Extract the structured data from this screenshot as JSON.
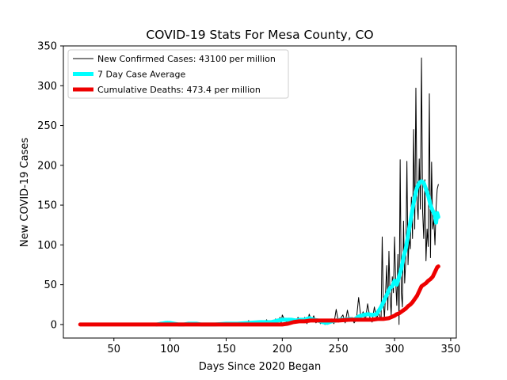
{
  "chart_data": {
    "type": "line",
    "title": "COVID-19 Stats For Mesa County, CO",
    "xlabel": "Days Since 2020 Began",
    "ylabel": "New COVID-19 Cases",
    "xlim": [
      5,
      355
    ],
    "ylim": [
      -17,
      350
    ],
    "xticks": [
      50,
      100,
      150,
      200,
      250,
      300,
      350
    ],
    "yticks": [
      0,
      50,
      100,
      150,
      200,
      250,
      300,
      350
    ],
    "grid": false,
    "legend_position": "upper-left",
    "series": [
      {
        "name": "New Confirmed Cases: 43100 per million",
        "color": "#000000",
        "style": "thin-line",
        "points": [
          [
            20,
            0
          ],
          [
            40,
            0
          ],
          [
            60,
            0
          ],
          [
            80,
            0
          ],
          [
            88,
            1
          ],
          [
            92,
            3
          ],
          [
            95,
            0
          ],
          [
            98,
            4
          ],
          [
            101,
            1
          ],
          [
            104,
            2
          ],
          [
            108,
            0
          ],
          [
            112,
            0
          ],
          [
            116,
            1
          ],
          [
            120,
            2
          ],
          [
            124,
            1
          ],
          [
            128,
            0
          ],
          [
            132,
            1
          ],
          [
            136,
            0
          ],
          [
            140,
            0
          ],
          [
            144,
            1
          ],
          [
            148,
            0
          ],
          [
            152,
            1
          ],
          [
            156,
            2
          ],
          [
            160,
            0
          ],
          [
            164,
            3
          ],
          [
            168,
            1
          ],
          [
            170,
            5
          ],
          [
            172,
            0
          ],
          [
            174,
            2
          ],
          [
            176,
            4
          ],
          [
            178,
            0
          ],
          [
            180,
            3
          ],
          [
            182,
            5
          ],
          [
            184,
            0
          ],
          [
            186,
            6
          ],
          [
            188,
            2
          ],
          [
            190,
            4
          ],
          [
            192,
            0
          ],
          [
            194,
            7
          ],
          [
            196,
            3
          ],
          [
            198,
            9
          ],
          [
            199,
            2
          ],
          [
            200,
            12
          ],
          [
            202,
            6
          ],
          [
            204,
            3
          ],
          [
            206,
            8
          ],
          [
            208,
            4
          ],
          [
            210,
            7
          ],
          [
            212,
            2
          ],
          [
            214,
            9
          ],
          [
            216,
            5
          ],
          [
            218,
            3
          ],
          [
            220,
            9
          ],
          [
            222,
            1
          ],
          [
            224,
            13
          ],
          [
            226,
            4
          ],
          [
            228,
            11
          ],
          [
            230,
            2
          ],
          [
            232,
            6
          ],
          [
            234,
            1
          ],
          [
            236,
            4
          ],
          [
            238,
            0
          ],
          [
            240,
            5
          ],
          [
            242,
            2
          ],
          [
            244,
            7
          ],
          [
            246,
            1
          ],
          [
            248,
            19
          ],
          [
            250,
            3
          ],
          [
            252,
            8
          ],
          [
            254,
            12
          ],
          [
            256,
            2
          ],
          [
            258,
            18
          ],
          [
            260,
            4
          ],
          [
            262,
            9
          ],
          [
            264,
            2
          ],
          [
            266,
            6
          ],
          [
            268,
            34
          ],
          [
            270,
            8
          ],
          [
            272,
            16
          ],
          [
            274,
            5
          ],
          [
            276,
            26
          ],
          [
            278,
            9
          ],
          [
            280,
            3
          ],
          [
            282,
            22
          ],
          [
            284,
            8
          ],
          [
            286,
            14
          ],
          [
            288,
            6
          ],
          [
            289,
            110
          ],
          [
            290,
            28
          ],
          [
            291,
            8
          ],
          [
            292,
            40
          ],
          [
            293,
            74
          ],
          [
            294,
            18
          ],
          [
            295,
            92
          ],
          [
            296,
            35
          ],
          [
            297,
            12
          ],
          [
            298,
            60
          ],
          [
            299,
            40
          ],
          [
            300,
            110
          ],
          [
            301,
            55
          ],
          [
            302,
            24
          ],
          [
            303,
            88
          ],
          [
            304,
            0
          ],
          [
            305,
            207
          ],
          [
            306,
            40
          ],
          [
            307,
            22
          ],
          [
            308,
            130
          ],
          [
            309,
            52
          ],
          [
            310,
            80
          ],
          [
            311,
            205
          ],
          [
            312,
            75
          ],
          [
            313,
            110
          ],
          [
            314,
            95
          ],
          [
            315,
            160
          ],
          [
            316,
            108
          ],
          [
            317,
            245
          ],
          [
            318,
            120
          ],
          [
            319,
            297
          ],
          [
            320,
            155
          ],
          [
            321,
            132
          ],
          [
            322,
            208
          ],
          [
            323,
            145
          ],
          [
            324,
            335
          ],
          [
            325,
            142
          ],
          [
            326,
            108
          ],
          [
            327,
            182
          ],
          [
            328,
            80
          ],
          [
            329,
            120
          ],
          [
            330,
            98
          ],
          [
            331,
            290
          ],
          [
            332,
            84
          ],
          [
            333,
            204
          ],
          [
            334,
            120
          ],
          [
            335,
            132
          ],
          [
            336,
            100
          ],
          [
            337,
            148
          ],
          [
            338,
            170
          ],
          [
            339,
            176
          ]
        ]
      },
      {
        "name": "7 Day Case Average",
        "color": "#00ffff",
        "style": "thick-line",
        "points": [
          [
            88,
            0
          ],
          [
            92,
            1
          ],
          [
            96,
            2
          ],
          [
            100,
            2
          ],
          [
            104,
            1
          ],
          [
            108,
            0
          ],
          [
            112,
            0
          ],
          [
            116,
            1
          ],
          [
            120,
            1
          ],
          [
            124,
            1
          ],
          [
            128,
            0
          ],
          [
            132,
            0
          ],
          [
            136,
            0
          ],
          [
            140,
            0
          ],
          [
            150,
            1
          ],
          [
            160,
            1
          ],
          [
            170,
            2
          ],
          [
            180,
            3
          ],
          [
            190,
            3
          ],
          [
            196,
            5
          ],
          [
            200,
            6
          ],
          [
            204,
            6
          ],
          [
            208,
            6
          ],
          [
            212,
            5
          ],
          [
            216,
            6
          ],
          [
            220,
            6
          ],
          [
            224,
            8
          ],
          [
            228,
            6
          ],
          [
            232,
            5
          ],
          [
            236,
            3
          ],
          [
            240,
            2
          ],
          [
            244,
            4
          ],
          [
            248,
            5
          ],
          [
            252,
            6
          ],
          [
            256,
            6
          ],
          [
            260,
            7
          ],
          [
            264,
            6
          ],
          [
            268,
            10
          ],
          [
            272,
            12
          ],
          [
            276,
            13
          ],
          [
            280,
            12
          ],
          [
            284,
            13
          ],
          [
            288,
            22
          ],
          [
            290,
            28
          ],
          [
            292,
            34
          ],
          [
            294,
            40
          ],
          [
            296,
            46
          ],
          [
            298,
            48
          ],
          [
            300,
            55
          ],
          [
            302,
            50
          ],
          [
            304,
            60
          ],
          [
            306,
            70
          ],
          [
            308,
            85
          ],
          [
            310,
            95
          ],
          [
            312,
            112
          ],
          [
            314,
            128
          ],
          [
            316,
            145
          ],
          [
            318,
            160
          ],
          [
            320,
            172
          ],
          [
            322,
            178
          ],
          [
            324,
            180
          ],
          [
            326,
            178
          ],
          [
            328,
            170
          ],
          [
            330,
            162
          ],
          [
            332,
            150
          ],
          [
            334,
            143
          ],
          [
            336,
            137
          ],
          [
            337,
            128
          ],
          [
            338,
            140
          ],
          [
            339,
            135
          ]
        ]
      },
      {
        "name": "Cumulative Deaths: 473.4 per million",
        "color": "#ee0000",
        "style": "thick-line",
        "points": [
          [
            20,
            0
          ],
          [
            100,
            0
          ],
          [
            150,
            0
          ],
          [
            195,
            0
          ],
          [
            200,
            0
          ],
          [
            205,
            1
          ],
          [
            210,
            3
          ],
          [
            215,
            4
          ],
          [
            220,
            4
          ],
          [
            225,
            5
          ],
          [
            230,
            5
          ],
          [
            240,
            5
          ],
          [
            250,
            5
          ],
          [
            260,
            6
          ],
          [
            270,
            6
          ],
          [
            280,
            6
          ],
          [
            285,
            7
          ],
          [
            290,
            7
          ],
          [
            295,
            8
          ],
          [
            300,
            11
          ],
          [
            302,
            13
          ],
          [
            304,
            14
          ],
          [
            306,
            16
          ],
          [
            308,
            18
          ],
          [
            310,
            20
          ],
          [
            312,
            23
          ],
          [
            314,
            25
          ],
          [
            316,
            28
          ],
          [
            318,
            32
          ],
          [
            320,
            36
          ],
          [
            322,
            42
          ],
          [
            324,
            48
          ],
          [
            326,
            50
          ],
          [
            328,
            52
          ],
          [
            330,
            55
          ],
          [
            332,
            57
          ],
          [
            334,
            60
          ],
          [
            336,
            66
          ],
          [
            338,
            72
          ],
          [
            339,
            73
          ]
        ]
      }
    ]
  }
}
